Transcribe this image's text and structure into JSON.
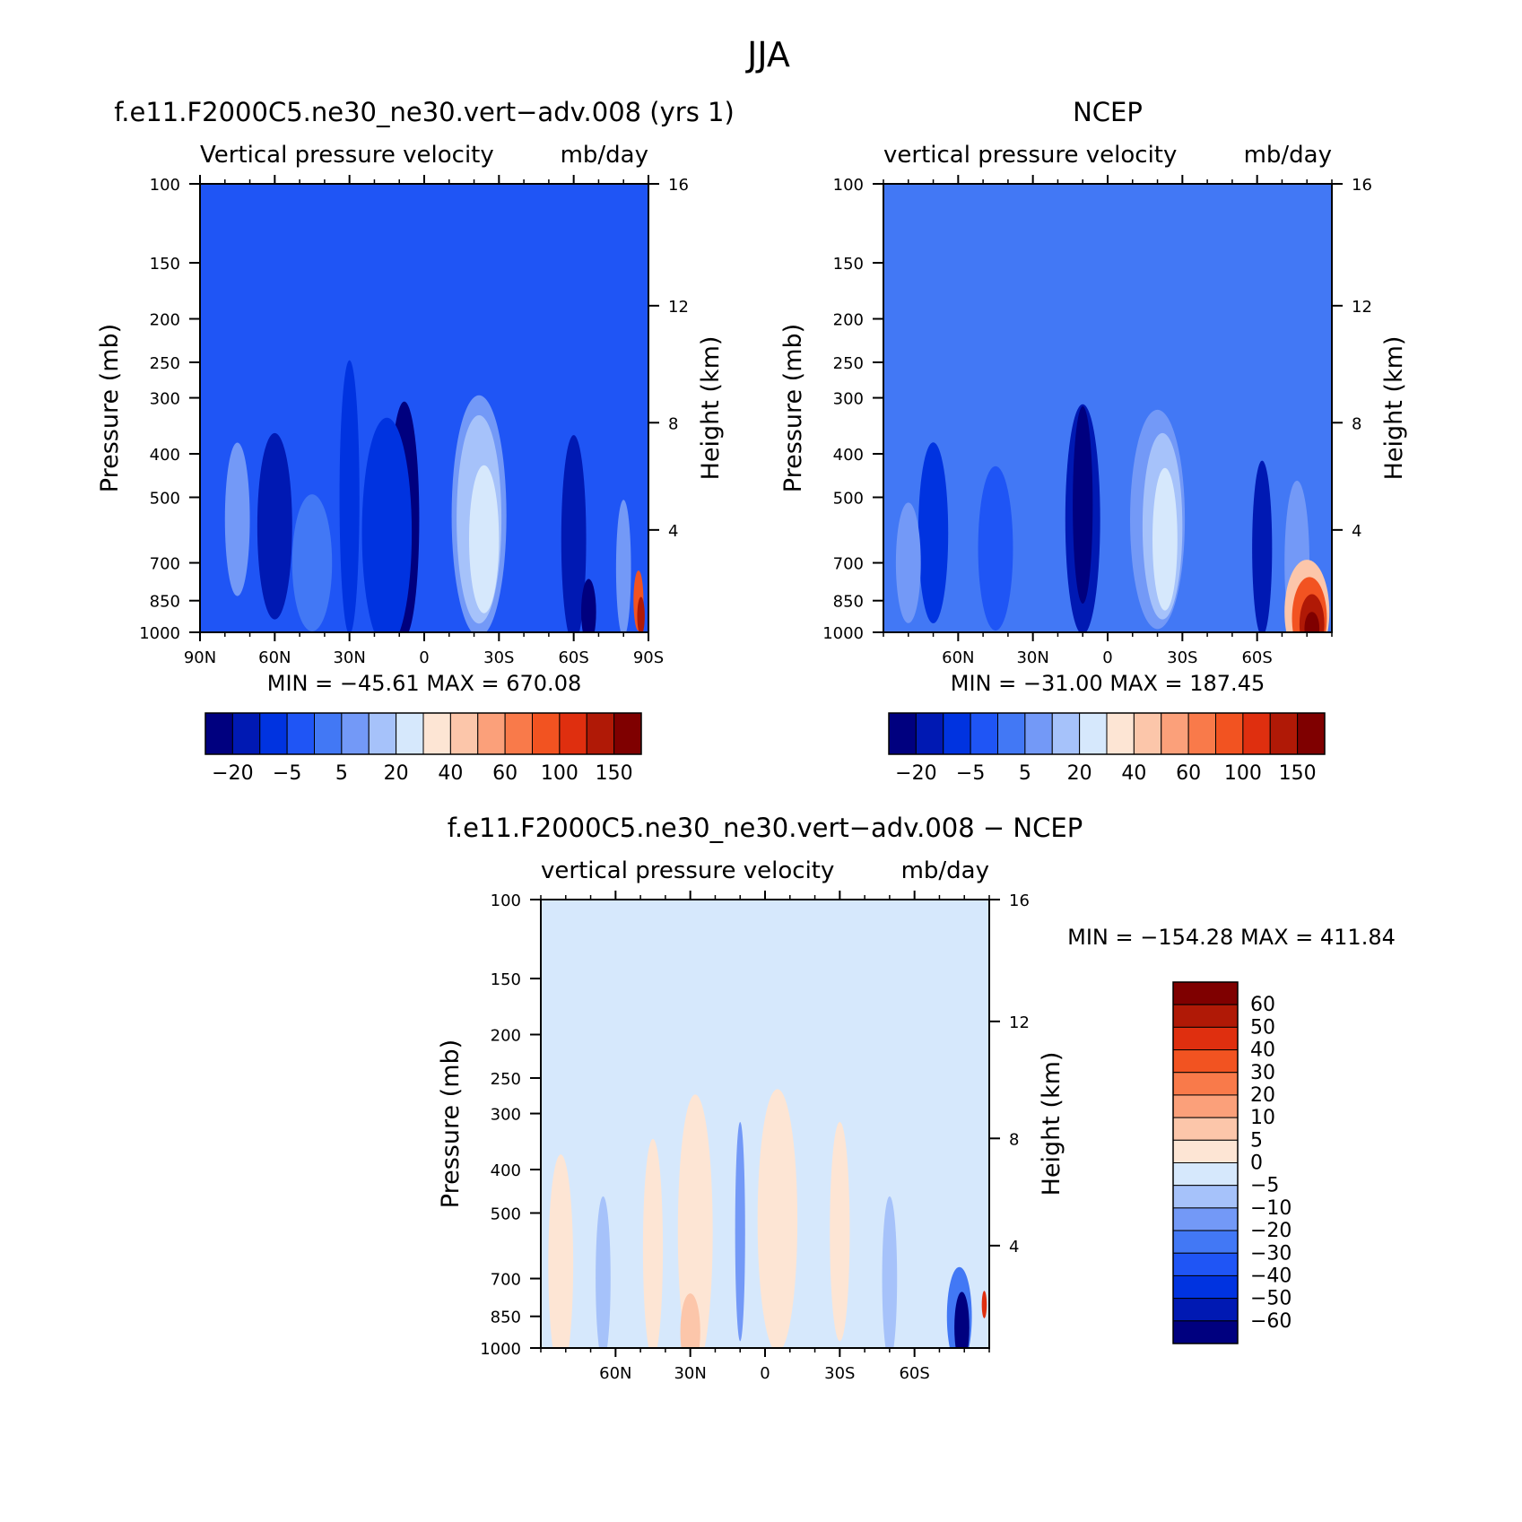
{
  "figure": {
    "title": "JJA"
  },
  "colors": {
    "model_palette": [
      "#00007f",
      "#0019b3",
      "#0033e0",
      "#1f55f5",
      "#4278f5",
      "#7399f7",
      "#a6c2fa",
      "#d6e8fc",
      "#fde5d4",
      "#fcc6aa",
      "#fba07a",
      "#f97a4a",
      "#f25321",
      "#df2f0f",
      "#b01906",
      "#7f0000"
    ],
    "diff_palette": [
      "#00007f",
      "#0019b3",
      "#0033e0",
      "#1f55f5",
      "#4278f5",
      "#7399f7",
      "#a6c2fa",
      "#d6e8fc",
      "#fde5d4",
      "#fcc6aa",
      "#fba07a",
      "#f97a4a",
      "#f25321",
      "#df2f0f",
      "#b01906",
      "#7f0000"
    ]
  },
  "chart_data": [
    {
      "type": "heatmap",
      "id": "model",
      "title": "f.e11.F2000C5.ne30_ne30.vert−adv.008 (yrs 1)",
      "subtitle_left": "Vertical pressure velocity",
      "subtitle_right": "mb/day",
      "ylabel": "Pressure (mb)",
      "y2label": "Height (km)",
      "x_ticks": [
        "90N",
        "60N",
        "30N",
        "0",
        "30S",
        "60S",
        "90S"
      ],
      "x_range": [
        90,
        -90
      ],
      "y_ticks": [
        "100",
        "150",
        "200",
        "250",
        "300",
        "400",
        "500",
        "700",
        "850",
        "1000"
      ],
      "y_range": [
        100,
        1000
      ],
      "y2_ticks": [
        "16",
        "12",
        "8",
        "4"
      ],
      "min_max": "MIN = −45.61   MAX = 670.08",
      "colorbar_labels": [
        "−20",
        "−5",
        "5",
        "20",
        "40",
        "60",
        "100",
        "150"
      ],
      "pattern": {
        "bg": 3,
        "blobs": [
          {
            "lat": 60,
            "p": 580,
            "w": 7,
            "h": 340,
            "c": 1
          },
          {
            "lat": 75,
            "p": 560,
            "w": 5,
            "h": 280,
            "c": 5
          },
          {
            "lat": 45,
            "p": 700,
            "w": 8,
            "h": 250,
            "c": 4
          },
          {
            "lat": 30,
            "p": 500,
            "w": 4,
            "h": 500,
            "c": 2
          },
          {
            "lat": 8,
            "p": 560,
            "w": 6,
            "h": 430,
            "c": 0
          },
          {
            "lat": 15,
            "p": 600,
            "w": 10,
            "h": 420,
            "c": 2
          },
          {
            "lat": -22,
            "p": 550,
            "w": 11,
            "h": 440,
            "c": 5
          },
          {
            "lat": -22,
            "p": 560,
            "w": 9,
            "h": 380,
            "c": 6
          },
          {
            "lat": -24,
            "p": 620,
            "w": 6,
            "h": 270,
            "c": 7
          },
          {
            "lat": -60,
            "p": 620,
            "w": 5,
            "h": 380,
            "c": 1
          },
          {
            "lat": -66,
            "p": 900,
            "w": 3,
            "h": 120,
            "c": 0
          },
          {
            "lat": -80,
            "p": 720,
            "w": 3,
            "h": 250,
            "c": 5
          },
          {
            "lat": -86,
            "p": 850,
            "w": 2,
            "h": 110,
            "c": 12
          },
          {
            "lat": -87,
            "p": 920,
            "w": 1.5,
            "h": 70,
            "c": 14
          }
        ]
      }
    },
    {
      "type": "heatmap",
      "id": "ncep",
      "title": "NCEP",
      "subtitle_left": "vertical pressure velocity",
      "subtitle_right": "mb/day",
      "ylabel": "Pressure (mb)",
      "y2label": "Height (km)",
      "x_ticks": [
        "60N",
        "30N",
        "0",
        "30S",
        "60S"
      ],
      "x_range": [
        90,
        -90
      ],
      "y_ticks": [
        "100",
        "150",
        "200",
        "250",
        "300",
        "400",
        "500",
        "700",
        "850",
        "1000"
      ],
      "y_range": [
        100,
        1000
      ],
      "y2_ticks": [
        "16",
        "12",
        "8",
        "4"
      ],
      "min_max": "MIN = −31.00   MAX = 187.45",
      "colorbar_labels": [
        "−20",
        "−5",
        "5",
        "20",
        "40",
        "60",
        "100",
        "150"
      ],
      "pattern": {
        "bg": 4,
        "blobs": [
          {
            "lat": 70,
            "p": 600,
            "w": 6,
            "h": 330,
            "c": 2
          },
          {
            "lat": 80,
            "p": 700,
            "w": 5,
            "h": 220,
            "c": 5
          },
          {
            "lat": 45,
            "p": 650,
            "w": 7,
            "h": 300,
            "c": 3
          },
          {
            "lat": 10,
            "p": 560,
            "w": 7,
            "h": 420,
            "c": 1
          },
          {
            "lat": 10,
            "p": 520,
            "w": 4,
            "h": 360,
            "c": 0
          },
          {
            "lat": -20,
            "p": 560,
            "w": 11,
            "h": 400,
            "c": 5
          },
          {
            "lat": -22,
            "p": 580,
            "w": 8,
            "h": 340,
            "c": 6
          },
          {
            "lat": -23,
            "p": 620,
            "w": 5,
            "h": 260,
            "c": 7
          },
          {
            "lat": -62,
            "p": 650,
            "w": 4,
            "h": 320,
            "c": 1
          },
          {
            "lat": -76,
            "p": 700,
            "w": 5,
            "h": 300,
            "c": 5
          },
          {
            "lat": -80,
            "p": 900,
            "w": 9,
            "h": 190,
            "c": 9
          },
          {
            "lat": -81,
            "p": 930,
            "w": 7,
            "h": 150,
            "c": 12
          },
          {
            "lat": -82,
            "p": 960,
            "w": 5,
            "h": 110,
            "c": 14
          },
          {
            "lat": -82,
            "p": 980,
            "w": 3,
            "h": 60,
            "c": 15
          }
        ]
      }
    },
    {
      "type": "heatmap",
      "id": "diff",
      "title": "f.e11.F2000C5.ne30_ne30.vert−adv.008 − NCEP",
      "subtitle_left": "vertical pressure velocity",
      "subtitle_right": "mb/day",
      "ylabel": "Pressure (mb)",
      "y2label": "Height (km)",
      "x_ticks": [
        "60N",
        "30N",
        "0",
        "30S",
        "60S"
      ],
      "x_range": [
        90,
        -90
      ],
      "y_ticks": [
        "100",
        "150",
        "200",
        "250",
        "300",
        "400",
        "500",
        "700",
        "850",
        "1000"
      ],
      "y_range": [
        100,
        1000
      ],
      "y2_ticks": [
        "16",
        "12",
        "8",
        "4"
      ],
      "min_max": "MIN = −154.28   MAX = 411.84",
      "colorbar_labels": [
        "60",
        "50",
        "40",
        "30",
        "20",
        "10",
        "5",
        "0",
        "−5",
        "−10",
        "−20",
        "−30",
        "−40",
        "−50",
        "−60"
      ],
      "pattern": {
        "bg": 7,
        "blobs": [
          {
            "lat": 82,
            "p": 650,
            "w": 5,
            "h": 400,
            "c": 8
          },
          {
            "lat": 65,
            "p": 700,
            "w": 3,
            "h": 300,
            "c": 6
          },
          {
            "lat": 45,
            "p": 600,
            "w": 4,
            "h": 400,
            "c": 8
          },
          {
            "lat": 28,
            "p": 550,
            "w": 7,
            "h": 500,
            "c": 8
          },
          {
            "lat": 30,
            "p": 920,
            "w": 4,
            "h": 140,
            "c": 9
          },
          {
            "lat": 10,
            "p": 550,
            "w": 2,
            "h": 400,
            "c": 5
          },
          {
            "lat": -5,
            "p": 520,
            "w": 8,
            "h": 480,
            "c": 8
          },
          {
            "lat": -30,
            "p": 550,
            "w": 4,
            "h": 400,
            "c": 8
          },
          {
            "lat": -50,
            "p": 700,
            "w": 3,
            "h": 300,
            "c": 6
          },
          {
            "lat": -78,
            "p": 850,
            "w": 5,
            "h": 180,
            "c": 4
          },
          {
            "lat": -79,
            "p": 900,
            "w": 3,
            "h": 130,
            "c": 0
          },
          {
            "lat": -88,
            "p": 800,
            "w": 1,
            "h": 50,
            "c": 13
          }
        ]
      }
    }
  ]
}
